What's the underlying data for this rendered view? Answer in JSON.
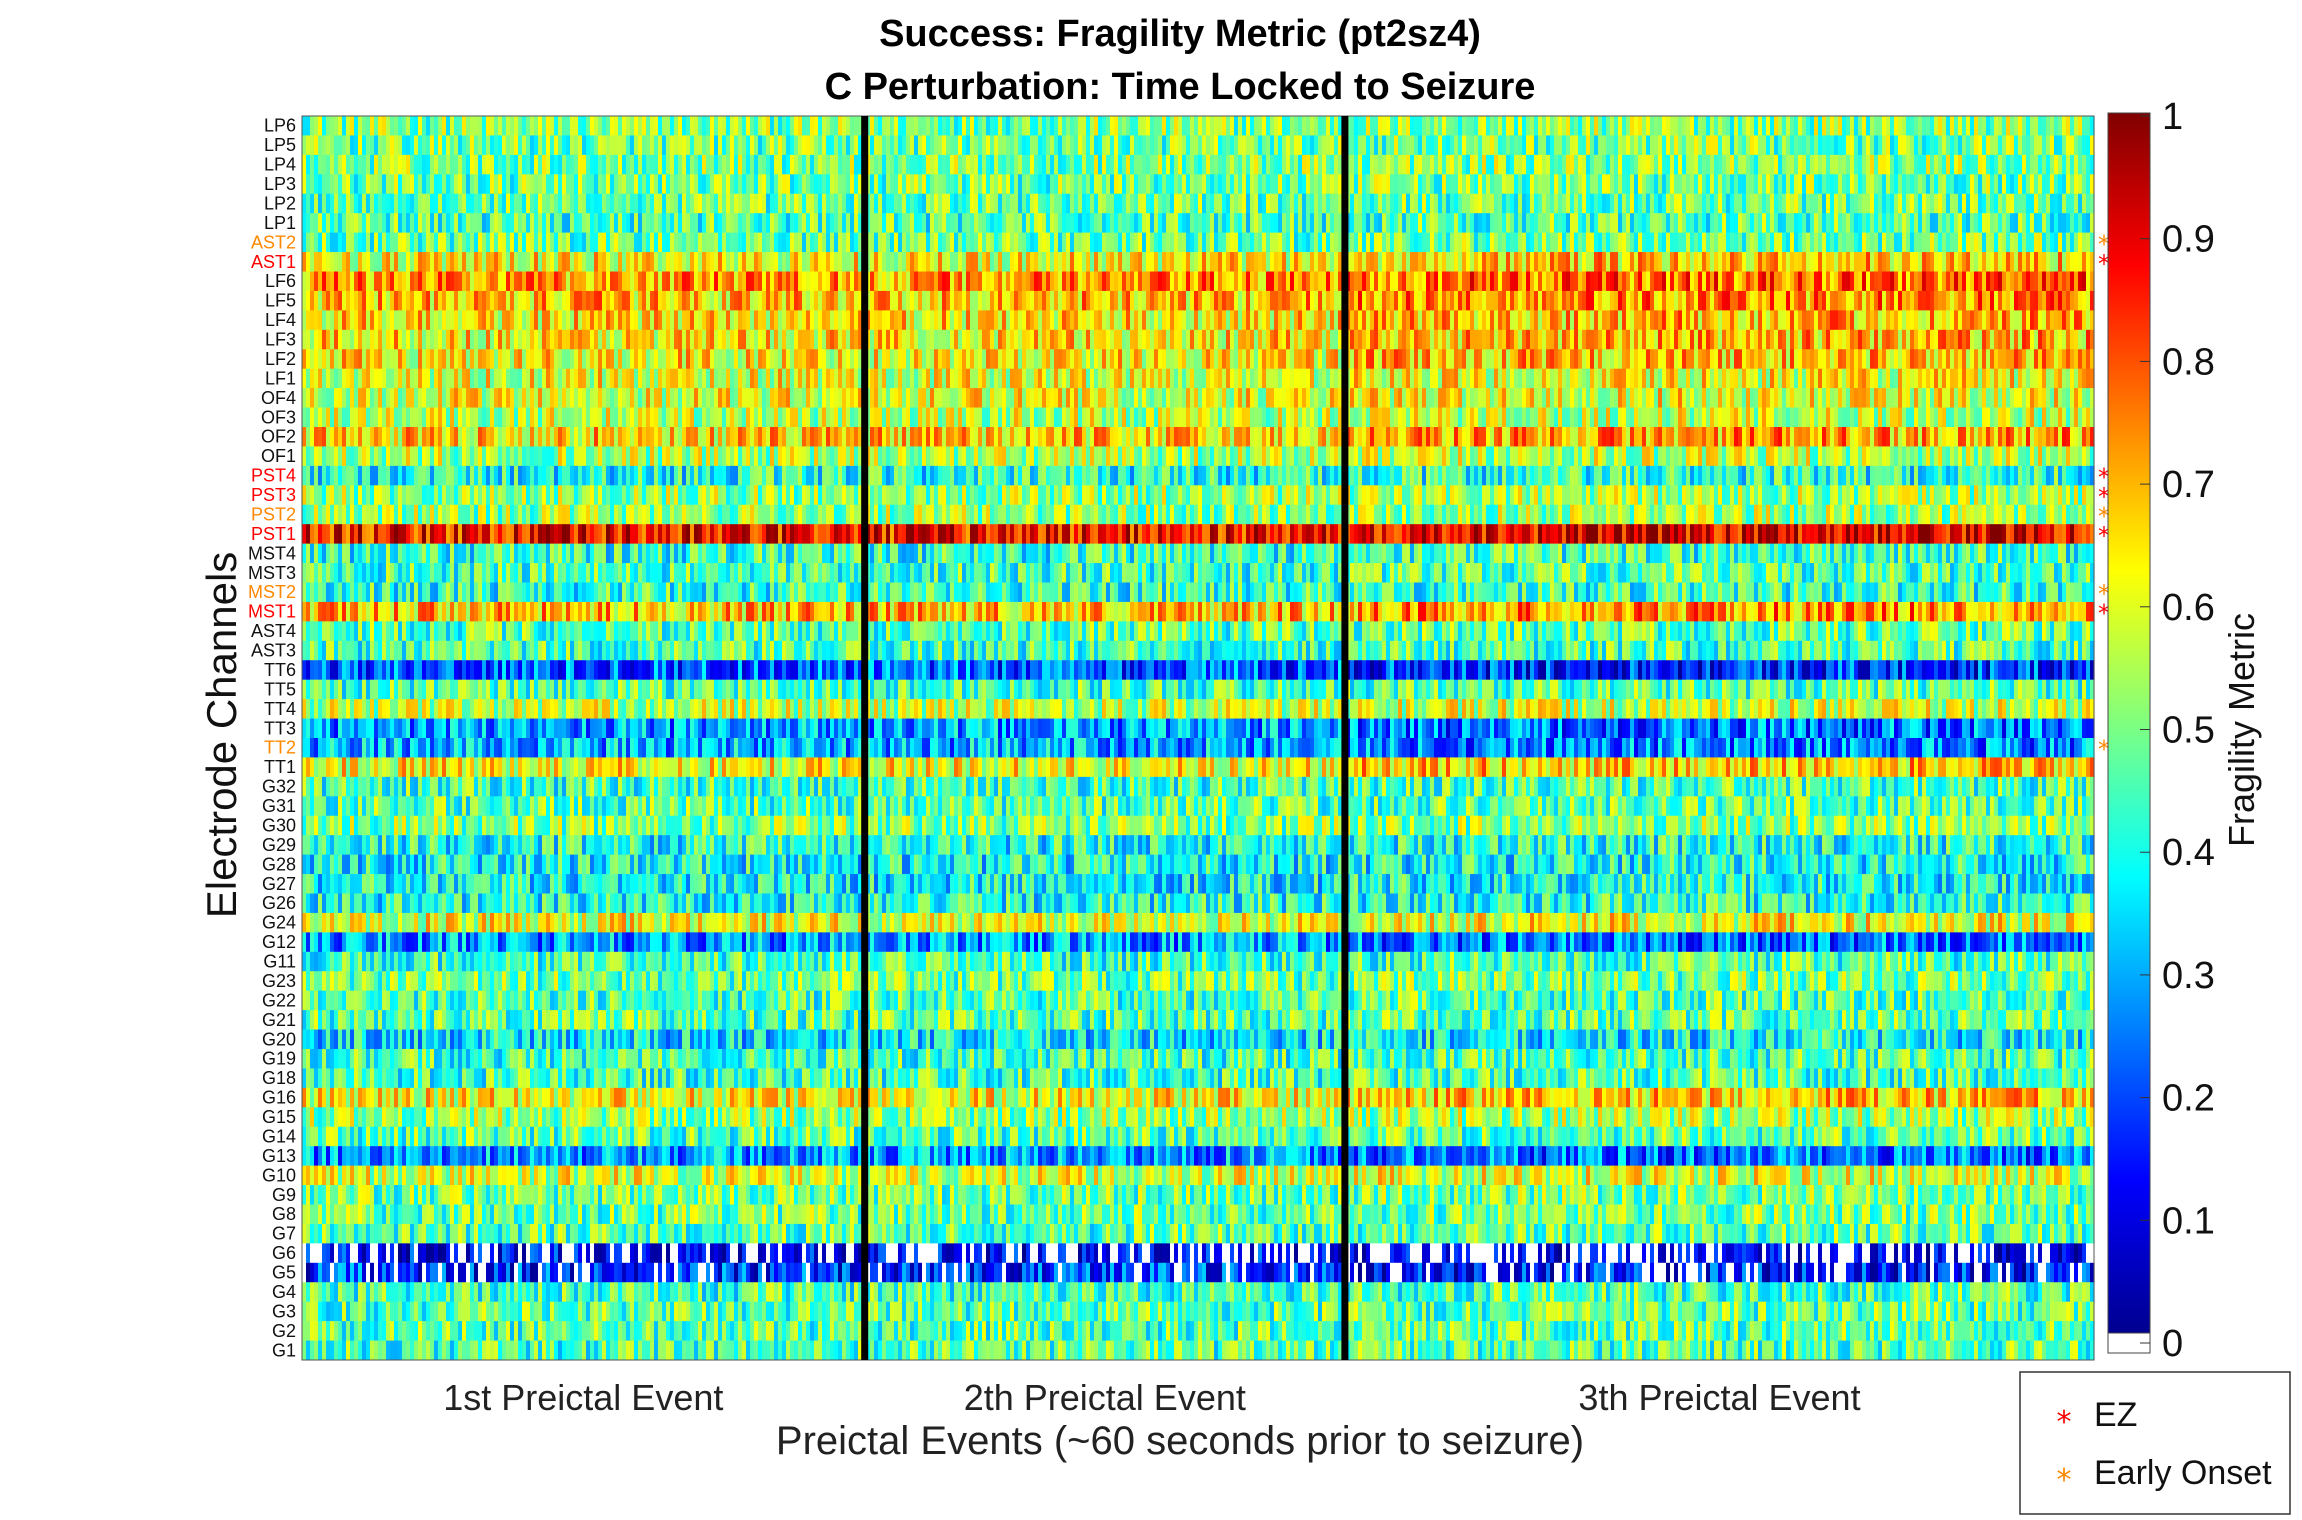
{
  "chart_data": {
    "type": "heatmap",
    "title": "Success: Fragility Metric (pt2sz4)",
    "subtitle": "C Perturbation:  Time Locked to Seizure",
    "xlabel": "Preictal Events (~60 seconds prior to seizure)",
    "ylabel": "Electrode Channels",
    "colorbar_label": "Fragility Metric",
    "colorbar_ticks": [
      "0",
      "0.1",
      "0.2",
      "0.3",
      "0.4",
      "0.5",
      "0.6",
      "0.7",
      "0.8",
      "0.9",
      "1"
    ],
    "clim": [
      0,
      1
    ],
    "colormap": "jet",
    "event_labels": [
      "1st Preictal Event",
      "2th Preictal Event",
      "3th Preictal Event"
    ],
    "event_boundaries_fraction": [
      0.314,
      0.582
    ],
    "channels": [
      "LP6",
      "LP5",
      "LP4",
      "LP3",
      "LP2",
      "LP1",
      "AST2",
      "AST1",
      "LF6",
      "LF5",
      "LF4",
      "LF3",
      "LF2",
      "LF1",
      "OF4",
      "OF3",
      "OF2",
      "OF1",
      "PST4",
      "PST3",
      "PST2",
      "PST1",
      "MST4",
      "MST3",
      "MST2",
      "MST1",
      "AST4",
      "AST3",
      "TT6",
      "TT5",
      "TT4",
      "TT3",
      "TT2",
      "TT1",
      "G32",
      "G31",
      "G30",
      "G29",
      "G28",
      "G27",
      "G26",
      "G24",
      "G12",
      "G11",
      "G23",
      "G22",
      "G21",
      "G20",
      "G19",
      "G18",
      "G16",
      "G15",
      "G14",
      "G13",
      "G10",
      "G9",
      "G8",
      "G7",
      "G6",
      "G5",
      "G4",
      "G3",
      "G2",
      "G1"
    ],
    "channel_mean_fragility": [
      0.5,
      0.48,
      0.5,
      0.48,
      0.47,
      0.45,
      0.48,
      0.62,
      0.72,
      0.68,
      0.64,
      0.64,
      0.63,
      0.6,
      0.6,
      0.56,
      0.66,
      0.54,
      0.4,
      0.52,
      0.52,
      0.86,
      0.42,
      0.44,
      0.42,
      0.68,
      0.46,
      0.44,
      0.22,
      0.45,
      0.56,
      0.28,
      0.3,
      0.62,
      0.44,
      0.46,
      0.5,
      0.4,
      0.38,
      0.38,
      0.4,
      0.6,
      0.28,
      0.44,
      0.48,
      0.45,
      0.46,
      0.36,
      0.44,
      0.44,
      0.62,
      0.52,
      0.46,
      0.28,
      0.58,
      0.48,
      0.48,
      0.46,
      0.1,
      0.18,
      0.44,
      0.46,
      0.46,
      0.45
    ],
    "ez_channels": [
      "AST1",
      "PST4",
      "PST3",
      "PST1",
      "MST1"
    ],
    "early_onset_channels": [
      "AST2",
      "PST2",
      "MST2",
      "TT2"
    ],
    "legend": [
      {
        "label": "EZ",
        "color": "#ff0000",
        "marker": "*"
      },
      {
        "label": "Early Onset",
        "color": "#ff8800",
        "marker": "*"
      }
    ],
    "legend_position": "bottom-right outside"
  }
}
